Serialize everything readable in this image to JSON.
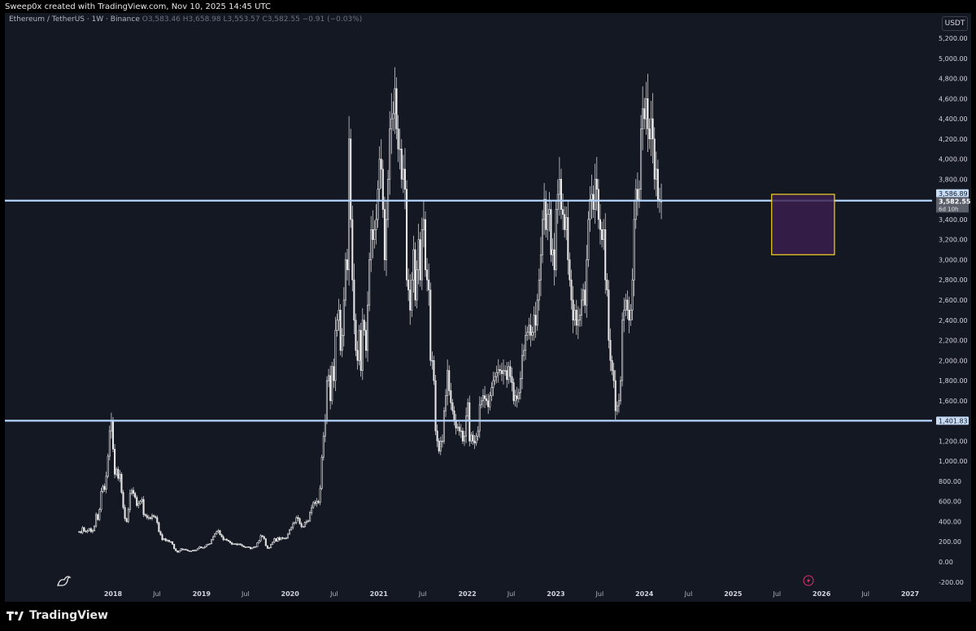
{
  "header": {
    "caption": "Sweep0x created with TradingView.com, Nov 10, 2025 14:45 UTC"
  },
  "legend": {
    "symbol": "Ethereum / TetherUS · 1W · Binance",
    "ohlc": "O3,583.46 H3,658.98 L3,553.57 C3,582.55 −0.91 (−0.03%)"
  },
  "currency_badge": "USDT",
  "footer": {
    "brand": "TradingView"
  },
  "colors": {
    "background": "#141823",
    "candles": "#e8e8e8",
    "level_lines": "#b3d4ff",
    "zone_fill": "#3a1f4f",
    "zone_border": "#f5d623",
    "tag_bg": "#c7ddf7",
    "current_tag_bg": "#5a5f6a"
  },
  "price_tags": {
    "upper_level": "3,586.89",
    "current_price": "3,582.55",
    "countdown": "6d 10h",
    "lower_level": "1,401.83"
  },
  "chart_data": {
    "type": "candlestick",
    "timeframe": "1W",
    "y_axis": {
      "min": -200,
      "max": 5400,
      "ticks": [
        -200,
        0,
        200,
        400,
        600,
        800,
        1000,
        1200,
        1400,
        1600,
        1800,
        2000,
        2200,
        2400,
        2600,
        2800,
        3000,
        3200,
        3400,
        3600,
        3800,
        4000,
        4200,
        4400,
        4600,
        4800,
        5000,
        5200
      ],
      "tick_labels": [
        "-200.00",
        "0.00",
        "200.00",
        "400.00",
        "600.00",
        "800.00",
        "1,000.00",
        "1,200.00",
        "",
        "1,600.00",
        "1,800.00",
        "2,000.00",
        "2,200.00",
        "2,400.00",
        "2,600.00",
        "2,800.00",
        "3,000.00",
        "3,200.00",
        "3,400.00",
        "",
        "3,800.00",
        "4,000.00",
        "4,200.00",
        "4,400.00",
        "4,600.00",
        "4,800.00",
        "5,000.00",
        "5,200.00"
      ]
    },
    "x_axis": {
      "range": [
        "2017-06-01",
        "2027-03-15"
      ],
      "ticks": [
        {
          "date": "2018-01-01",
          "label": "2018"
        },
        {
          "date": "2018-07-01",
          "label": "Jul"
        },
        {
          "date": "2019-01-01",
          "label": "2019"
        },
        {
          "date": "2019-07-01",
          "label": "Jul"
        },
        {
          "date": "2020-01-01",
          "label": "2020"
        },
        {
          "date": "2020-07-01",
          "label": "Jul"
        },
        {
          "date": "2021-01-01",
          "label": "2021"
        },
        {
          "date": "2021-07-01",
          "label": "Jul"
        },
        {
          "date": "2022-01-01",
          "label": "2022"
        },
        {
          "date": "2022-07-01",
          "label": "Jul"
        },
        {
          "date": "2023-01-01",
          "label": "2023"
        },
        {
          "date": "2023-07-01",
          "label": "Jul"
        },
        {
          "date": "2024-01-01",
          "label": "2024"
        },
        {
          "date": "2024-07-01",
          "label": "Jul"
        },
        {
          "date": "2025-01-01",
          "label": "2025"
        },
        {
          "date": "2025-07-01",
          "label": "Jul"
        },
        {
          "date": "2026-01-01",
          "label": "2026"
        },
        {
          "date": "2026-07-01",
          "label": "Jul"
        },
        {
          "date": "2027-01-01",
          "label": "2027"
        }
      ]
    },
    "series": [
      {
        "start_date": "2017-08-14",
        "close": [
          300,
          290,
          340,
          305,
          300,
          310,
          330,
          300,
          310,
          355,
          470,
          420,
          520,
          700,
          750,
          720,
          850,
          1050,
          1300,
          1400,
          1120,
          870,
          920,
          830,
          870,
          690,
          540,
          430,
          400,
          520,
          680,
          710,
          680,
          640,
          560,
          580,
          600,
          620,
          470,
          460,
          440,
          440,
          430,
          460,
          450,
          440,
          390,
          300,
          270,
          220,
          230,
          210,
          215,
          200,
          200,
          175,
          130,
          110,
          95,
          110,
          130,
          120,
          125,
          120,
          110,
          108,
          107,
          116,
          110,
          120,
          135,
          150,
          140,
          140,
          150,
          170,
          175,
          180,
          220,
          250,
          280,
          300,
          310,
          270,
          250,
          220,
          225,
          215,
          205,
          190,
          175,
          180,
          178,
          170,
          178,
          170,
          160,
          148,
          145,
          150,
          145,
          130,
          140,
          150,
          150,
          190,
          210,
          260,
          250,
          230,
          160,
          135,
          140,
          175,
          195,
          230,
          205,
          240,
          220,
          240,
          235,
          230,
          240,
          275,
          320,
          340,
          380,
          390,
          440,
          430,
          380,
          350,
          350,
          390,
          400,
          410,
          490,
          540,
          590,
          580,
          600,
          590,
          730,
          1040,
          1250,
          1400,
          1800,
          1850,
          1600,
          1940,
          1800,
          2300,
          2400,
          2500,
          2100,
          2250,
          2600,
          3000,
          2900,
          4200,
          3400,
          2800,
          2400,
          2100,
          2000,
          2300,
          1900,
          2400,
          2300,
          2100,
          2550,
          3000,
          3300,
          3200,
          3300,
          3400,
          3700,
          4000,
          3900,
          3500,
          3000,
          3400,
          3800,
          4300,
          4400,
          4450,
          4700,
          4300,
          4100,
          4100,
          3800,
          3900,
          3700,
          2800,
          2700,
          2500,
          2800,
          3100,
          2600,
          2900,
          3200,
          2800,
          3300,
          3400,
          2900,
          2800,
          2700,
          2000,
          2000,
          1800,
          1300,
          1200,
          1100,
          1200,
          1200,
          1500,
          1650,
          1900,
          1700,
          1580,
          1500,
          1400,
          1330,
          1340,
          1300,
          1300,
          1200,
          1250,
          1450,
          1580,
          1200,
          1260,
          1200,
          1180,
          1250,
          1300,
          1560,
          1600,
          1650,
          1620,
          1600,
          1540,
          1650,
          1730,
          1800,
          1840,
          1880,
          1910,
          1900,
          1870,
          1900,
          1900,
          1810,
          1940,
          1840,
          1780,
          1600,
          1650,
          1620,
          1680,
          1820,
          2050,
          2100,
          2250,
          2280,
          2350,
          2250,
          2280,
          2450,
          2350,
          2600,
          2800,
          3050,
          3400,
          3600,
          3300,
          3450,
          3500,
          3050,
          3100,
          2900,
          3500,
          3650,
          3800,
          3500,
          3450,
          3300,
          3420,
          3000,
          2800,
          2600,
          2400,
          2500,
          2350,
          2400,
          2450,
          2600,
          2700,
          2550,
          3000,
          3400,
          3600,
          3650,
          3500,
          3800,
          3700,
          3400,
          3300,
          3200,
          3300,
          2800,
          2700,
          2200,
          2000,
          1900,
          1800,
          1500,
          1550,
          1600,
          1800,
          2400,
          2500,
          2600,
          2500,
          2400,
          2500,
          2800,
          3400,
          3700,
          3600,
          3700,
          4300,
          4500,
          4400,
          4600,
          4300,
          4200,
          4400,
          4200,
          3800,
          3900,
          3600,
          3580,
          3580
        ]
      }
    ],
    "levels": [
      {
        "price": 3586.89,
        "label": "3,586.89"
      },
      {
        "price": 1401.83,
        "label": "1,401.83"
      }
    ],
    "zone": {
      "from_date": "2025-06-09",
      "to_date": "2026-02-23",
      "from_price": 3050,
      "to_price": 3650
    }
  }
}
